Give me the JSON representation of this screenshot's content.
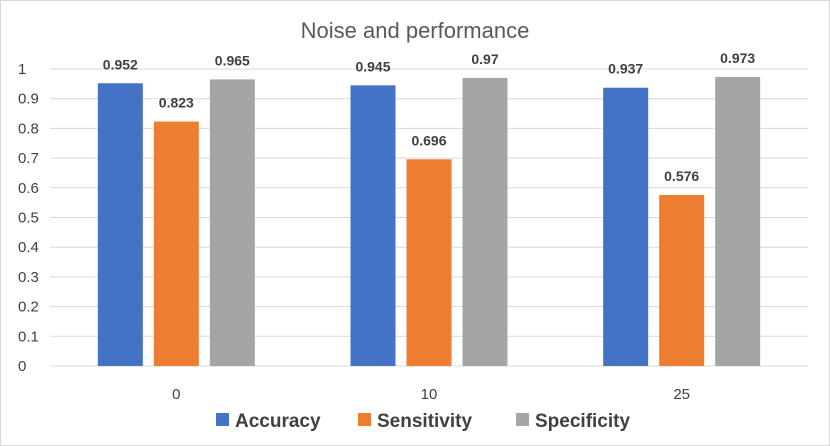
{
  "chart_data": {
    "type": "bar",
    "title": "Noise and performance",
    "xlabel": "",
    "ylabel": "",
    "categories": [
      "0",
      "10",
      "25"
    ],
    "ylim": [
      0,
      1
    ],
    "yticks": [
      "0",
      "0.1",
      "0.2",
      "0.3",
      "0.4",
      "0.5",
      "0.6",
      "0.7",
      "0.8",
      "0.9",
      "1"
    ],
    "grid": true,
    "legend_position": "bottom",
    "series": [
      {
        "name": "Accuracy",
        "color": "#4472c4",
        "values": [
          0.952,
          0.945,
          0.937
        ],
        "labels": [
          "0.952",
          "0.945",
          "0.937"
        ]
      },
      {
        "name": "Sensitivity",
        "color": "#ed7d31",
        "values": [
          0.823,
          0.696,
          0.576
        ],
        "labels": [
          "0.823",
          "0.696",
          "0.576"
        ]
      },
      {
        "name": "Specificity",
        "color": "#a5a5a5",
        "values": [
          0.965,
          0.97,
          0.973
        ],
        "labels": [
          "0.965",
          "0.97",
          "0.973"
        ]
      }
    ]
  }
}
